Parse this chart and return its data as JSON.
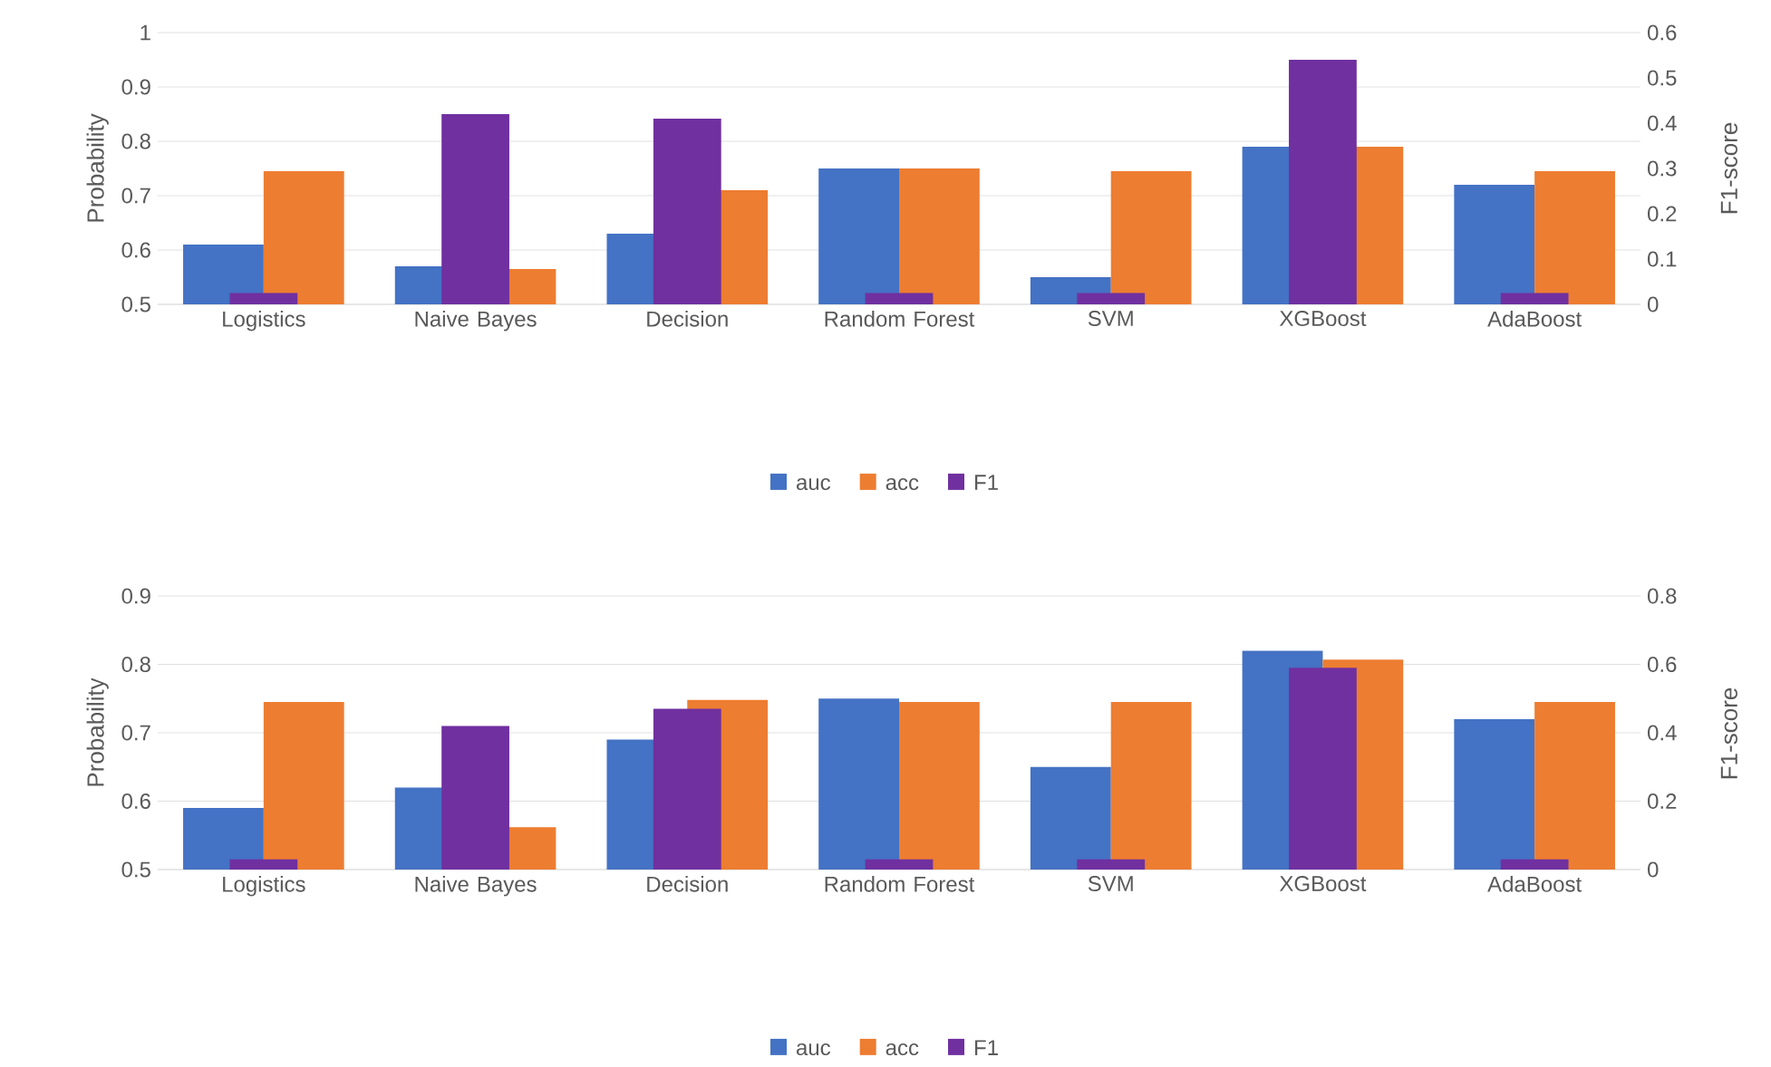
{
  "chart_data": [
    {
      "type": "bar",
      "categories": [
        "Logistics",
        "Naive Bayes",
        "Decision",
        "Random Forest",
        "SVM",
        "XGBoost",
        "AdaBoost"
      ],
      "series": [
        {
          "name": "auc",
          "color": "#4472c4",
          "values": [
            0.61,
            0.57,
            0.63,
            0.75,
            0.55,
            0.79,
            0.72
          ]
        },
        {
          "name": "acc",
          "color": "#ed7d31",
          "values": [
            0.745,
            0.565,
            0.71,
            0.75,
            0.745,
            0.79,
            0.745
          ]
        },
        {
          "name": "F1",
          "color": "#7030a0",
          "axis": "y2",
          "values": [
            0.025,
            0.42,
            0.41,
            0.025,
            0.025,
            0.54,
            0.025
          ]
        }
      ],
      "ylabel": "Probability",
      "y2label": "F1-score",
      "ylim": [
        0.5,
        1
      ],
      "yticks": [
        0.5,
        0.6,
        0.7,
        0.8,
        0.9,
        1
      ],
      "y2lim": [
        0,
        0.6
      ],
      "y2ticks": [
        0,
        0.1,
        0.2,
        0.3,
        0.4,
        0.5,
        0.6
      ],
      "grid": "y",
      "legend": "bottom"
    },
    {
      "type": "bar",
      "categories": [
        "Logistics",
        "Naive Bayes",
        "Decision",
        "Random Forest",
        "SVM",
        "XGBoost",
        "AdaBoost"
      ],
      "series": [
        {
          "name": "auc",
          "color": "#4472c4",
          "values": [
            0.59,
            0.62,
            0.69,
            0.75,
            0.65,
            0.82,
            0.72
          ]
        },
        {
          "name": "acc",
          "color": "#ed7d31",
          "values": [
            0.745,
            0.562,
            0.748,
            0.745,
            0.745,
            0.807,
            0.745
          ]
        },
        {
          "name": "F1",
          "color": "#7030a0",
          "axis": "y2",
          "values": [
            0.03,
            0.42,
            0.47,
            0.03,
            0.03,
            0.59,
            0.03
          ]
        }
      ],
      "ylabel": "Probability",
      "y2label": "F1-score",
      "ylim": [
        0.5,
        0.9
      ],
      "yticks": [
        0.5,
        0.6,
        0.7,
        0.8,
        0.9
      ],
      "y2lim": [
        0,
        0.8
      ],
      "y2ticks": [
        0,
        0.2,
        0.4,
        0.6,
        0.8
      ],
      "grid": "y",
      "legend": "bottom"
    }
  ]
}
